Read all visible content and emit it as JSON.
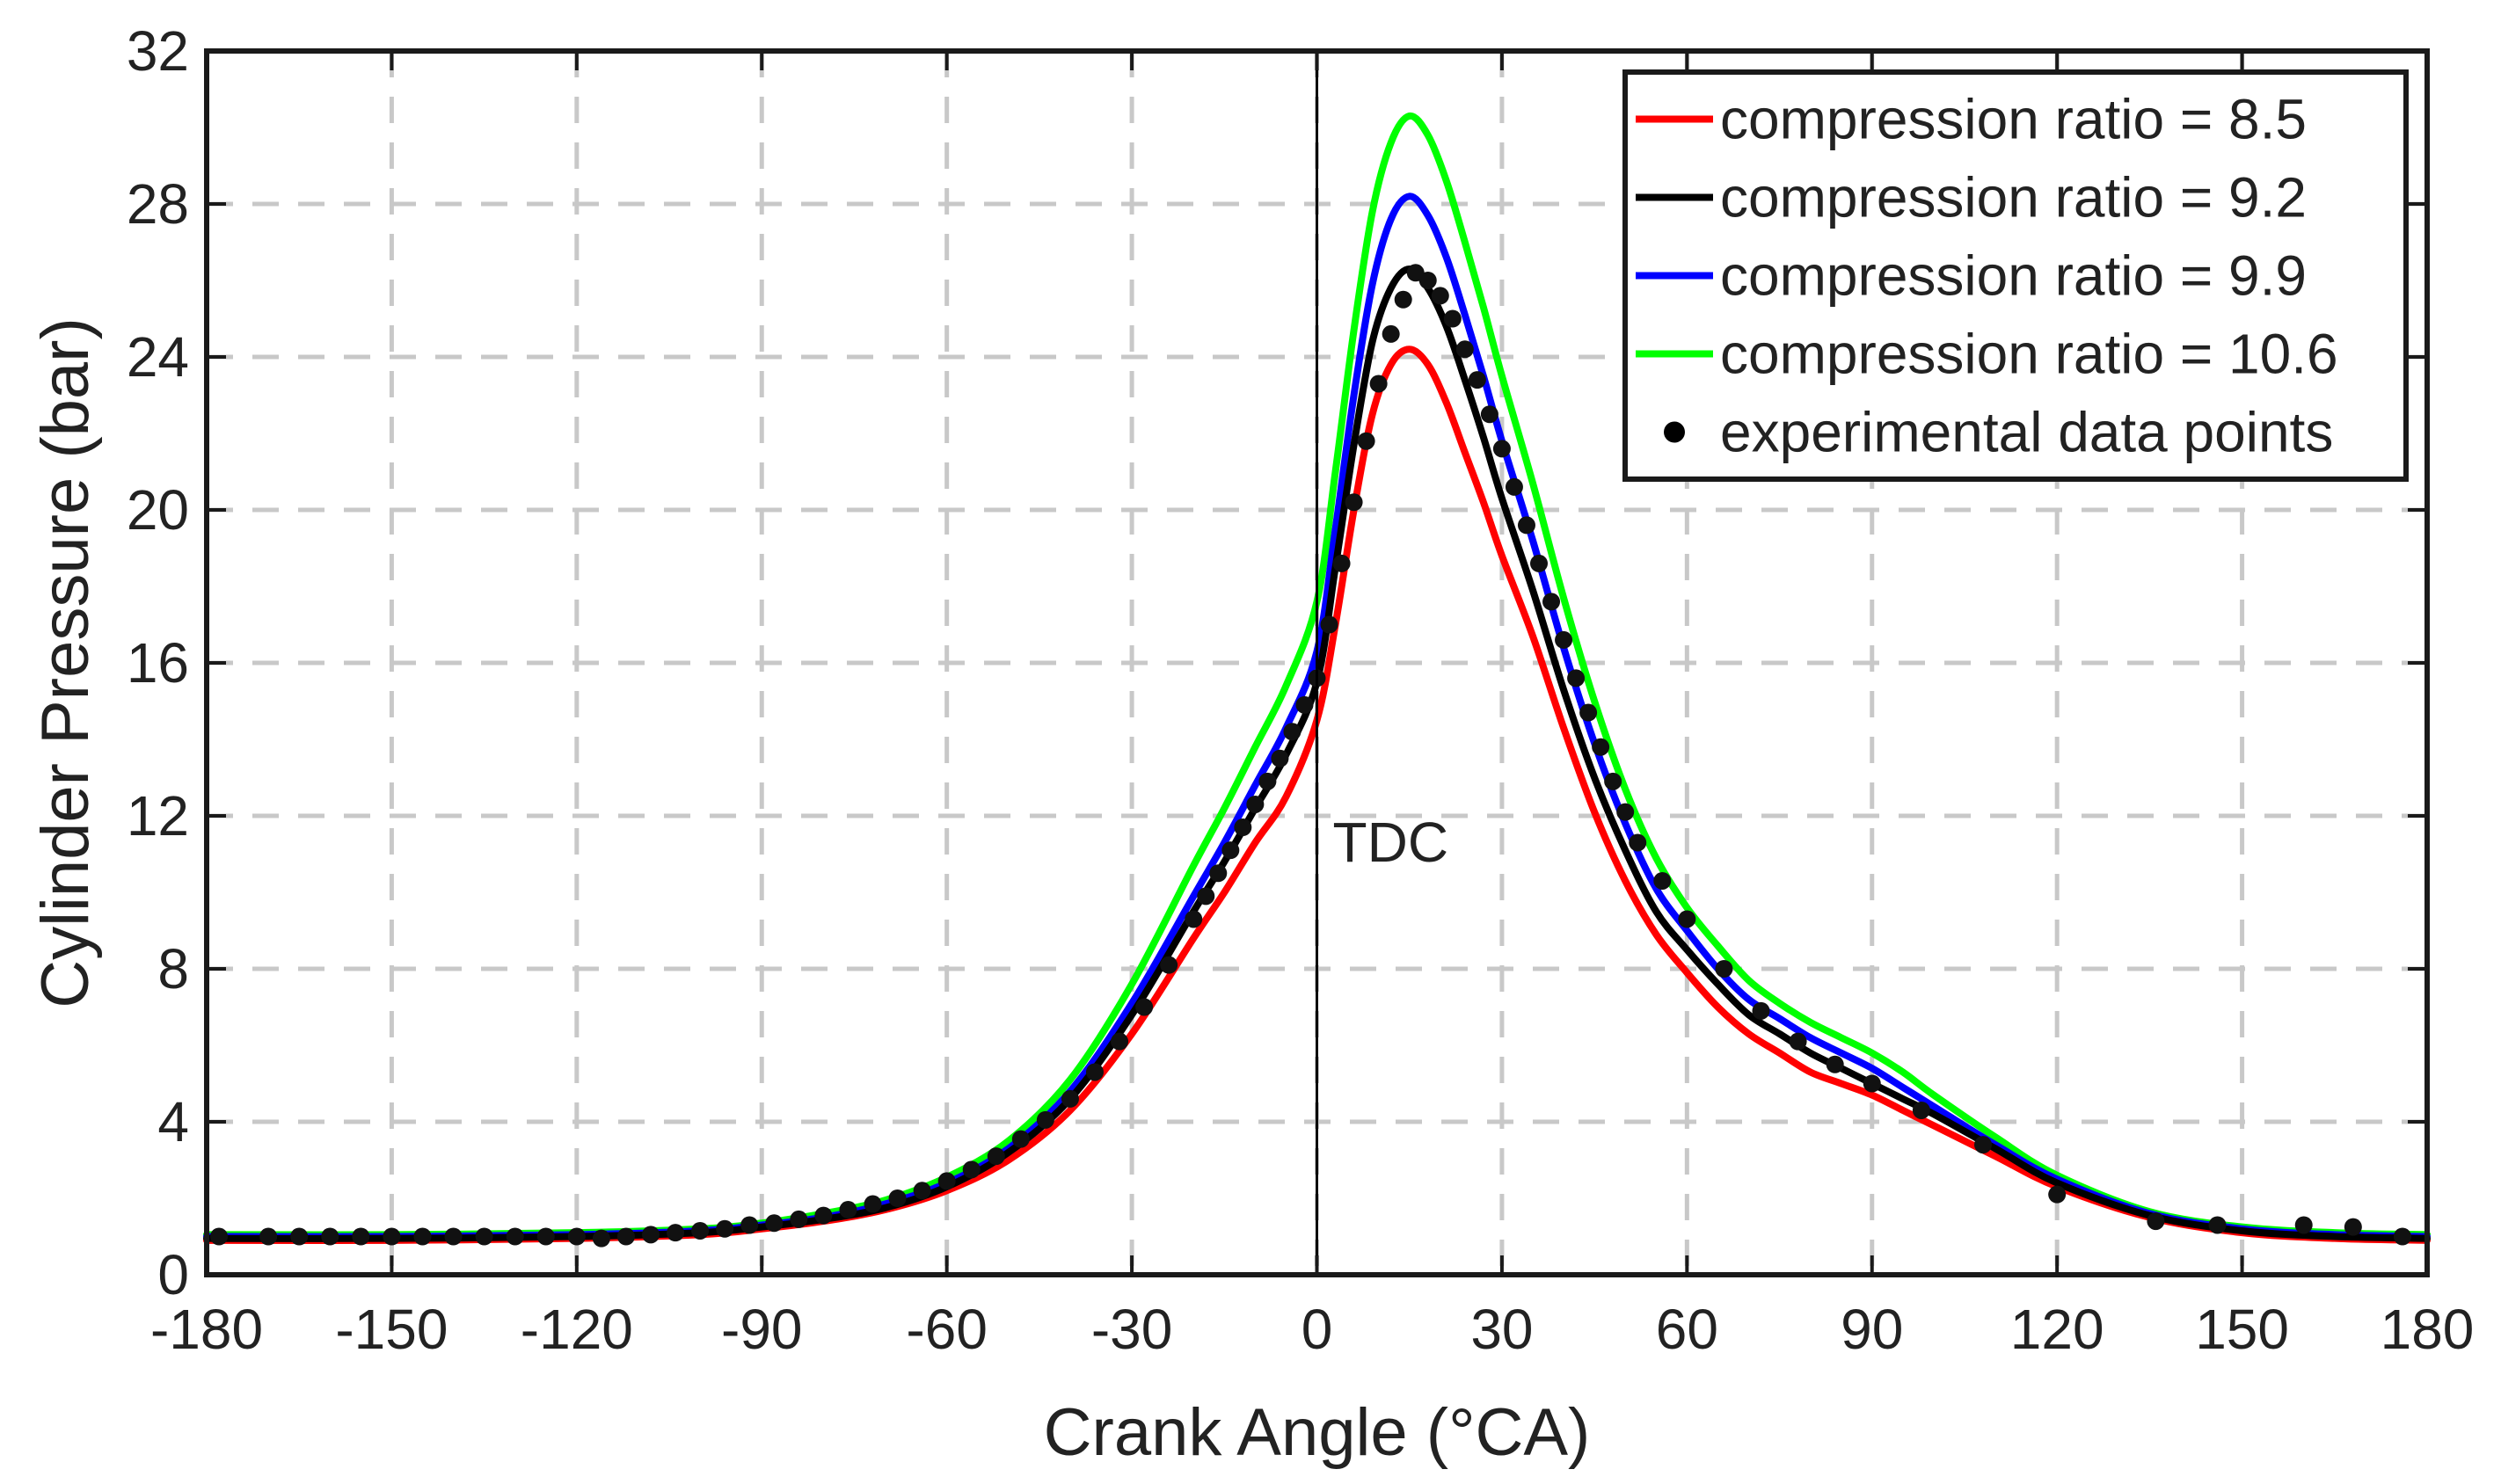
{
  "chart_data": {
    "type": "line",
    "xlabel": "Crank Angle (°CA)",
    "ylabel": "Cylinder Pressure (bar)",
    "xlim": [
      -180,
      180
    ],
    "ylim": [
      0,
      32
    ],
    "xticks": [
      -180,
      -150,
      -120,
      -90,
      -60,
      -30,
      0,
      30,
      60,
      90,
      120,
      150,
      180
    ],
    "yticks": [
      0,
      4,
      8,
      12,
      16,
      20,
      24,
      28,
      32
    ],
    "xtick_labels": [
      "-180",
      "-150",
      "-120",
      "-90",
      "-60",
      "-30",
      "0",
      "30",
      "60",
      "90",
      "120",
      "150",
      "180"
    ],
    "ytick_labels": [
      "0",
      "4",
      "8",
      "12",
      "16",
      "20",
      "24",
      "28",
      "32"
    ],
    "grid": true,
    "legend_position": "top-right",
    "annotation": {
      "text": "TDC",
      "x": 0
    },
    "x": [
      -180,
      -150,
      -120,
      -100,
      -90,
      -80,
      -70,
      -60,
      -50,
      -40,
      -30,
      -20,
      -15,
      -10,
      -5,
      0,
      3,
      6,
      9,
      12,
      15,
      18,
      21,
      24,
      27,
      30,
      35,
      40,
      45,
      50,
      55,
      60,
      65,
      70,
      75,
      80,
      85,
      90,
      95,
      100,
      110,
      120,
      135,
      150,
      165,
      180
    ],
    "series": [
      {
        "name": "compression ratio = 8.5",
        "color": "#ff0000",
        "values": [
          0.9,
          0.9,
          0.95,
          1.05,
          1.2,
          1.4,
          1.7,
          2.2,
          3.0,
          4.3,
          6.3,
          8.8,
          10.0,
          11.3,
          12.5,
          14.5,
          17.0,
          20.0,
          22.5,
          23.8,
          24.2,
          23.8,
          22.8,
          21.5,
          20.2,
          18.8,
          16.7,
          14.3,
          12.1,
          10.3,
          8.9,
          7.9,
          7.0,
          6.3,
          5.8,
          5.3,
          5.0,
          4.7,
          4.3,
          3.9,
          3.1,
          2.3,
          1.5,
          1.1,
          0.95,
          0.9
        ]
      },
      {
        "name": "compression ratio = 9.2",
        "color": "#000000",
        "values": [
          0.95,
          0.95,
          1.0,
          1.1,
          1.25,
          1.45,
          1.75,
          2.3,
          3.2,
          4.6,
          6.8,
          9.5,
          10.8,
          12.2,
          13.6,
          15.5,
          18.5,
          21.7,
          24.4,
          25.8,
          26.3,
          25.8,
          24.8,
          23.4,
          21.9,
          20.3,
          17.9,
          15.3,
          13.0,
          11.1,
          9.5,
          8.5,
          7.6,
          6.8,
          6.3,
          5.8,
          5.4,
          5.0,
          4.6,
          4.2,
          3.3,
          2.4,
          1.55,
          1.15,
          1.0,
          0.95
        ]
      },
      {
        "name": "compression ratio = 9.9",
        "color": "#0000ff",
        "values": [
          1.0,
          1.0,
          1.05,
          1.15,
          1.3,
          1.5,
          1.85,
          2.4,
          3.3,
          4.8,
          7.1,
          9.9,
          11.3,
          12.8,
          14.3,
          16.3,
          19.5,
          23.0,
          25.9,
          27.6,
          28.2,
          27.7,
          26.6,
          25.1,
          23.5,
          21.8,
          19.2,
          16.4,
          13.9,
          11.8,
          10.1,
          9.0,
          8.0,
          7.2,
          6.7,
          6.2,
          5.8,
          5.4,
          4.9,
          4.4,
          3.4,
          2.5,
          1.6,
          1.2,
          1.05,
          1.0
        ]
      },
      {
        "name": "compression ratio = 10.6",
        "color": "#00ff00",
        "values": [
          1.05,
          1.05,
          1.1,
          1.2,
          1.35,
          1.6,
          1.95,
          2.55,
          3.5,
          5.1,
          7.6,
          10.7,
          12.2,
          13.8,
          15.4,
          17.6,
          21.0,
          24.7,
          27.8,
          29.6,
          30.3,
          29.8,
          28.6,
          27.0,
          25.3,
          23.5,
          20.7,
          17.7,
          15.0,
          12.7,
          10.9,
          9.6,
          8.6,
          7.7,
          7.1,
          6.6,
          6.2,
          5.8,
          5.3,
          4.7,
          3.6,
          2.6,
          1.65,
          1.25,
          1.1,
          1.05
        ]
      }
    ],
    "experimental": {
      "name": "experimental data points",
      "color": "#000000",
      "x": [
        -178,
        -170,
        -165,
        -160,
        -155,
        -150,
        -145,
        -140,
        -135,
        -130,
        -125,
        -120,
        -116,
        -112,
        -108,
        -104,
        -100,
        -96,
        -92,
        -88,
        -84,
        -80,
        -76,
        -72,
        -68,
        -64,
        -60,
        -56,
        -52,
        -48,
        -44,
        -40,
        -36,
        -32,
        -28,
        -24,
        -20,
        -18,
        -16,
        -14,
        -12,
        -10,
        -8,
        -6,
        -4,
        -2,
        0,
        2,
        4,
        6,
        8,
        10,
        12,
        14,
        16,
        18,
        20,
        22,
        24,
        26,
        28,
        30,
        32,
        34,
        36,
        38,
        40,
        42,
        44,
        46,
        48,
        50,
        52,
        56,
        60,
        66,
        72,
        78,
        84,
        90,
        98,
        108,
        120,
        136,
        146,
        160,
        168,
        176
      ],
      "y": [
        1.0,
        1.0,
        1.0,
        1.0,
        1.0,
        1.0,
        1.0,
        1.0,
        1.0,
        1.0,
        1.0,
        1.0,
        0.95,
        1.0,
        1.05,
        1.1,
        1.15,
        1.2,
        1.3,
        1.35,
        1.45,
        1.55,
        1.7,
        1.85,
        2.0,
        2.2,
        2.45,
        2.75,
        3.1,
        3.55,
        4.05,
        4.6,
        5.3,
        6.1,
        7.0,
        8.1,
        9.3,
        9.9,
        10.5,
        11.1,
        11.7,
        12.3,
        12.9,
        13.5,
        14.2,
        14.9,
        15.6,
        17.0,
        18.6,
        20.2,
        21.8,
        23.3,
        24.6,
        25.5,
        26.2,
        26.0,
        25.6,
        25.0,
        24.2,
        23.4,
        22.5,
        21.6,
        20.6,
        19.6,
        18.6,
        17.6,
        16.6,
        15.6,
        14.7,
        13.8,
        12.9,
        12.1,
        11.3,
        10.3,
        9.3,
        8.0,
        6.9,
        6.1,
        5.5,
        5.0,
        4.3,
        3.4,
        2.1,
        1.4,
        1.3,
        1.3,
        1.25,
        1.0
      ]
    }
  }
}
